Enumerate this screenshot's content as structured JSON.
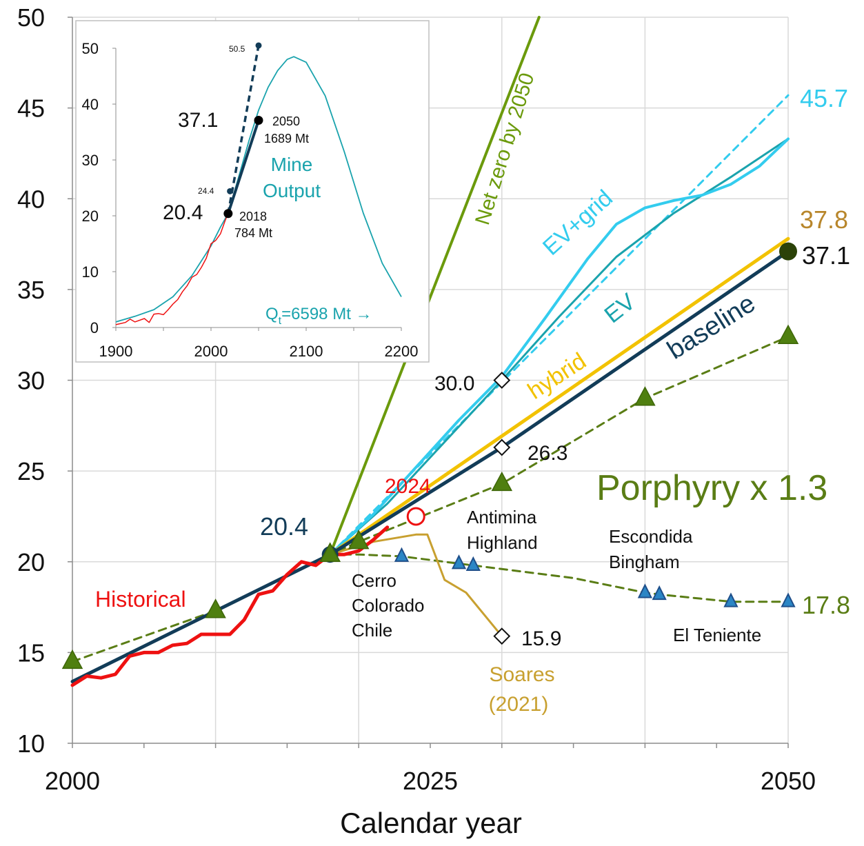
{
  "chart_data": [
    {
      "type": "line",
      "title": "",
      "xlabel": "Calendar year",
      "ylabel": "",
      "xlim": [
        2000,
        2050
      ],
      "ylim": [
        10,
        50
      ],
      "x_ticks": [
        2000,
        2025,
        2050
      ],
      "y_ticks": [
        10,
        15,
        20,
        25,
        30,
        35,
        40,
        45,
        50
      ],
      "grid": "vertical lines every 10 years, horizontal lines every 5 units",
      "series": [
        {
          "name": "Net zero by 2050",
          "color": "#6b9a0c",
          "style": "solid",
          "points": [
            [
              2018,
              20.4
            ],
            [
              2032.6,
              50
            ]
          ]
        },
        {
          "name": "EV+grid",
          "color": "#33ccee",
          "style": "solid",
          "points": [
            [
              2018,
              20.4
            ],
            [
              2021,
              22.6
            ],
            [
              2024,
              25.2
            ],
            [
              2027,
              27.8
            ],
            [
              2030,
              30.2
            ],
            [
              2033,
              33.4
            ],
            [
              2036,
              36.7
            ],
            [
              2038,
              38.6
            ],
            [
              2040,
              39.5
            ],
            [
              2042,
              39.9
            ],
            [
              2044,
              40.2
            ],
            [
              2046,
              40.8
            ],
            [
              2048,
              41.8
            ],
            [
              2050,
              43.3
            ]
          ]
        },
        {
          "name": "EV+grid trend",
          "color": "#33ccee",
          "style": "dashed",
          "points": [
            [
              2018,
              20.4
            ],
            [
              2050,
              45.7
            ]
          ]
        },
        {
          "name": "EV",
          "color": "#1aa3ad",
          "style": "solid",
          "points": [
            [
              2018,
              20.4
            ],
            [
              2022,
              23.2
            ],
            [
              2026,
              26.6
            ],
            [
              2030,
              30.0
            ],
            [
              2034,
              33.5
            ],
            [
              2038,
              36.8
            ],
            [
              2042,
              39.2
            ],
            [
              2046,
              41.2
            ],
            [
              2050,
              43.3
            ]
          ]
        },
        {
          "name": "hybrid",
          "color": "#f2c200",
          "style": "solid",
          "points": [
            [
              2018,
              20.4
            ],
            [
              2050,
              37.8
            ]
          ]
        },
        {
          "name": "baseline",
          "color": "#123c58",
          "style": "solid",
          "points": [
            [
              2000,
              13.4
            ],
            [
              2018,
              20.4
            ],
            [
              2030,
              26.3
            ],
            [
              2050,
              37.1
            ]
          ]
        },
        {
          "name": "Historical",
          "color": "#ee1111",
          "style": "solid",
          "points": [
            [
              2000,
              13.2
            ],
            [
              2001,
              13.7
            ],
            [
              2002,
              13.6
            ],
            [
              2003,
              13.8
            ],
            [
              2004,
              14.8
            ],
            [
              2005,
              15.0
            ],
            [
              2006,
              15.0
            ],
            [
              2007,
              15.4
            ],
            [
              2008,
              15.5
            ],
            [
              2009,
              16.0
            ],
            [
              2010,
              16.0
            ],
            [
              2011,
              16.0
            ],
            [
              2012,
              16.8
            ],
            [
              2013,
              18.2
            ],
            [
              2014,
              18.4
            ],
            [
              2015,
              19.3
            ],
            [
              2016,
              20.0
            ],
            [
              2017,
              19.8
            ],
            [
              2018,
              20.4
            ],
            [
              2019,
              20.4
            ],
            [
              2020,
              20.6
            ],
            [
              2021,
              21.2
            ],
            [
              2022,
              21.9
            ]
          ]
        },
        {
          "name": "Porphyry x 1.3",
          "color": "#5a7d15",
          "style": "dashed",
          "points": [
            [
              2000,
              14.5
            ],
            [
              2010,
              17.3
            ],
            [
              2018,
              20.4
            ],
            [
              2020,
              21.1
            ],
            [
              2030,
              24.3
            ],
            [
              2040,
              29.0
            ],
            [
              2050,
              32.4
            ]
          ]
        },
        {
          "name": "Porphyry lower",
          "color": "#5a7d15",
          "style": "dashed",
          "points": [
            [
              2018,
              20.4
            ],
            [
              2020,
              20.4
            ],
            [
              2023,
              20.3
            ],
            [
              2027,
              19.9
            ],
            [
              2028,
              19.8
            ],
            [
              2035,
              19.1
            ],
            [
              2040,
              18.3
            ],
            [
              2041,
              18.2
            ],
            [
              2046,
              17.8
            ],
            [
              2050,
              17.8
            ]
          ]
        },
        {
          "name": "Soares (2021)",
          "color": "#c8a030",
          "style": "solid",
          "points": [
            [
              2018,
              20.4
            ],
            [
              2021,
              21.1
            ],
            [
              2024,
              21.5
            ],
            [
              2024.8,
              21.5
            ],
            [
              2026,
              19.0
            ],
            [
              2027.5,
              18.3
            ],
            [
              2030,
              15.9
            ]
          ]
        }
      ],
      "triangle_markers": {
        "green": [
          [
            2000,
            14.5
          ],
          [
            2010,
            17.3
          ],
          [
            2018,
            20.4
          ],
          [
            2020,
            21.1
          ],
          [
            2030,
            24.3
          ],
          [
            2040,
            29.0
          ],
          [
            2050,
            32.4
          ]
        ],
        "blue": [
          [
            2023,
            20.3
          ],
          [
            2027,
            19.9
          ],
          [
            2028,
            19.8
          ],
          [
            2040,
            18.3
          ],
          [
            2041,
            18.2
          ],
          [
            2046,
            17.8
          ],
          [
            2050,
            17.8
          ]
        ]
      },
      "diamond_markers": [
        [
          2030,
          30.0
        ],
        [
          2030,
          26.3
        ],
        [
          2030,
          15.9
        ]
      ],
      "circle_markers": [
        [
          2018,
          20.4
        ],
        [
          2050,
          37.1
        ]
      ],
      "open_circle_2024": [
        2024,
        22.5
      ],
      "annotations": {
        "net_zero": "Net zero by 2050",
        "ev_grid": "EV+grid",
        "ev": "EV",
        "hybrid": "hybrid",
        "baseline": "baseline",
        "historical": "Historical",
        "porphyry": "Porphyry x 1.3",
        "soares_line1": "Soares",
        "soares_line2": "(2021)",
        "year_2024": "2024",
        "start_value": "20.4",
        "val_45_7": "45.7",
        "val_37_8": "37.8",
        "val_37_1": "37.1",
        "val_30_0": "30.0",
        "val_26_3": "26.3",
        "val_15_9": "15.9",
        "val_17_8": "17.8",
        "mine_antamina": "Antimina",
        "mine_highland": "Highland",
        "mine_escondida": "Escondida",
        "mine_bingham": "Bingham",
        "mine_cerro1": "Cerro",
        "mine_cerro2": "Colorado",
        "mine_cerro3": "Chile",
        "mine_teniente": "El Teniente"
      }
    },
    {
      "type": "line",
      "title": "",
      "xlabel": "",
      "ylabel": "",
      "xlim": [
        1900,
        2200
      ],
      "ylim": [
        0,
        50
      ],
      "x_ticks": [
        1900,
        2000,
        2100,
        2200
      ],
      "y_ticks": [
        0,
        10,
        20,
        30,
        40,
        50
      ],
      "series": [
        {
          "name": "Mine Output",
          "color": "#1aa3ad",
          "style": "solid",
          "peak": [
            2087,
            48.5
          ],
          "x": [
            1900,
            1920,
            1940,
            1960,
            1980,
            2000,
            2010,
            2018,
            2030,
            2040,
            2050,
            2060,
            2070,
            2080,
            2087,
            2100,
            2120,
            2140,
            2160,
            2180,
            2200
          ],
          "values": [
            1.0,
            2.0,
            3.2,
            5.5,
            9.3,
            14.6,
            18.0,
            20.4,
            27.5,
            33.5,
            38.9,
            43.0,
            46.0,
            48.0,
            48.5,
            47.5,
            41.5,
            31.5,
            20.5,
            11.5,
            5.5
          ]
        },
        {
          "name": "historical",
          "color": "#ee1111",
          "style": "solid",
          "x": [
            1900,
            1910,
            1915,
            1920,
            1930,
            1935,
            1940,
            1945,
            1950,
            1955,
            1960,
            1965,
            1970,
            1975,
            1980,
            1985,
            1990,
            1995,
            2000,
            2005,
            2010,
            2015,
            2018
          ],
          "values": [
            0.5,
            0.9,
            1.5,
            1.0,
            1.6,
            0.9,
            2.4,
            2.5,
            2.3,
            3.2,
            4.2,
            5.0,
            6.4,
            7.5,
            9.0,
            9.5,
            10.8,
            12.4,
            15.0,
            15.6,
            16.8,
            19.2,
            20.4
          ]
        },
        {
          "name": "baseline",
          "color": "#123c58",
          "style": "solid",
          "x": [
            2018,
            2050
          ],
          "values": [
            20.4,
            37.1
          ]
        },
        {
          "name": "baseline dashed",
          "color": "#123c58",
          "style": "dashed",
          "x": [
            2018,
            2050
          ],
          "values": [
            20.4,
            50.5
          ]
        }
      ],
      "points": [
        [
          2018,
          20.4
        ],
        [
          2050,
          37.1
        ],
        [
          2020,
          24.4
        ],
        [
          2050,
          50.5
        ]
      ],
      "annotations": {
        "p_2050_year": "2050",
        "p_2050_mt": "1689 Mt",
        "p_2018_year": "2018",
        "p_2018_mt": "784 Mt",
        "v_37_1": "37.1",
        "v_20_4": "20.4",
        "v_24_4": "24.4",
        "v_50_5": "50.5",
        "mine_output_1": "Mine",
        "mine_output_2": "Output",
        "qt_prefix": "Q",
        "qt_sub": "t",
        "qt_rest": "=6598 Mt →"
      }
    }
  ]
}
